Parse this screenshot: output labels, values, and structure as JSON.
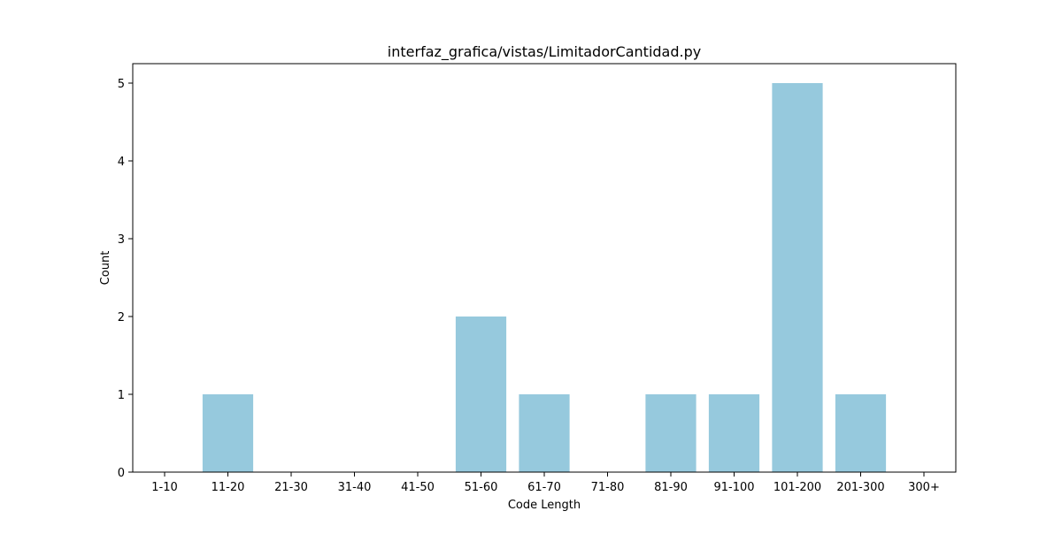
{
  "chart_data": {
    "type": "bar",
    "title": "interfaz_grafica/vistas/LimitadorCantidad.py",
    "xlabel": "Code Length",
    "ylabel": "Count",
    "categories": [
      "1-10",
      "11-20",
      "21-30",
      "31-40",
      "41-50",
      "51-60",
      "61-70",
      "71-80",
      "81-90",
      "91-100",
      "101-200",
      "201-300",
      "300+"
    ],
    "values": [
      0,
      1,
      0,
      0,
      0,
      2,
      1,
      0,
      1,
      1,
      5,
      1,
      0
    ],
    "ylim": [
      0,
      5.25
    ],
    "yticks": [
      0,
      1,
      2,
      3,
      4,
      5
    ],
    "bar_color": "#96c9dd",
    "grid": false,
    "legend": "none"
  }
}
